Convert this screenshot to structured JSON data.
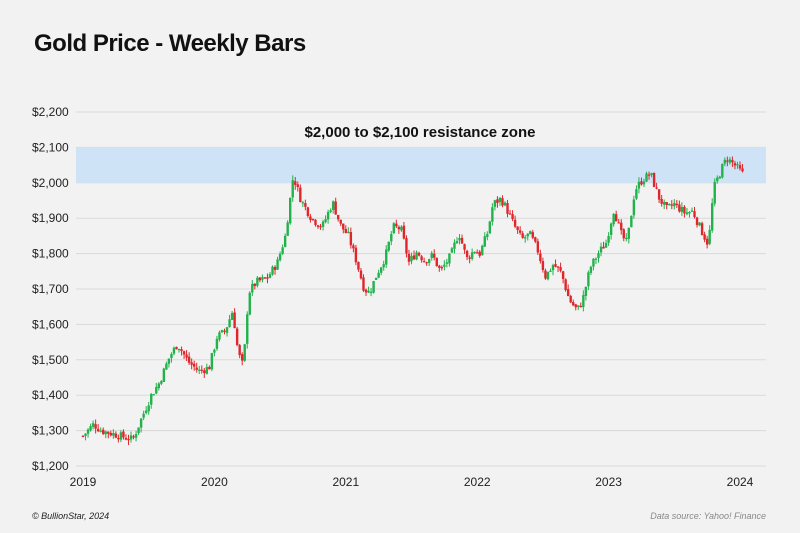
{
  "title": "Gold Price - Weekly Bars",
  "footer": {
    "copyright": "© BullionStar, 2024",
    "source": "Data source: Yahoo! Finance"
  },
  "colors": {
    "up": "#22b24c",
    "down": "#e0262b",
    "zone": "#cfe3f6",
    "grid": "#d9d9d9"
  },
  "chart_data": {
    "type": "candlestick",
    "title": "Gold Price - Weekly Bars",
    "ylim": [
      1200,
      2200
    ],
    "y_ticks": [
      {
        "value": 1200,
        "label": "$1,200"
      },
      {
        "value": 1300,
        "label": "$1,300"
      },
      {
        "value": 1400,
        "label": "$1,400"
      },
      {
        "value": 1500,
        "label": "$1,500"
      },
      {
        "value": 1600,
        "label": "$1,600"
      },
      {
        "value": 1700,
        "label": "$1,700"
      },
      {
        "value": 1800,
        "label": "$1,800"
      },
      {
        "value": 1900,
        "label": "$1,900"
      },
      {
        "value": 2000,
        "label": "$2,000"
      },
      {
        "value": 2100,
        "label": "$2,100"
      },
      {
        "value": 2200,
        "label": "$2,200"
      }
    ],
    "x_ticks": [
      {
        "value": 2019,
        "label": "2019"
      },
      {
        "value": 2020,
        "label": "2020"
      },
      {
        "value": 2021,
        "label": "2021"
      },
      {
        "value": 2022,
        "label": "2022"
      },
      {
        "value": 2023,
        "label": "2023"
      },
      {
        "value": 2024,
        "label": "2024"
      }
    ],
    "xlim": [
      2019,
      2024.1
    ],
    "grid": true,
    "annotation": {
      "text": "$2,000 to $2,100 resistance zone",
      "y_from": 2000,
      "y_to": 2100
    },
    "anchors": [
      [
        2019.0,
        1285
      ],
      [
        2019.08,
        1318
      ],
      [
        2019.14,
        1300
      ],
      [
        2019.22,
        1292
      ],
      [
        2019.3,
        1283
      ],
      [
        2019.38,
        1275
      ],
      [
        2019.44,
        1330
      ],
      [
        2019.52,
        1400
      ],
      [
        2019.58,
        1435
      ],
      [
        2019.66,
        1510
      ],
      [
        2019.72,
        1545
      ],
      [
        2019.8,
        1495
      ],
      [
        2019.88,
        1468
      ],
      [
        2019.96,
        1478
      ],
      [
        2020.02,
        1565
      ],
      [
        2020.08,
        1580
      ],
      [
        2020.14,
        1640
      ],
      [
        2020.18,
        1520
      ],
      [
        2020.22,
        1480
      ],
      [
        2020.26,
        1690
      ],
      [
        2020.32,
        1720
      ],
      [
        2020.4,
        1730
      ],
      [
        2020.48,
        1775
      ],
      [
        2020.54,
        1850
      ],
      [
        2020.6,
        2020
      ],
      [
        2020.66,
        1950
      ],
      [
        2020.74,
        1900
      ],
      [
        2020.82,
        1875
      ],
      [
        2020.9,
        1945
      ],
      [
        2020.96,
        1880
      ],
      [
        2021.02,
        1850
      ],
      [
        2021.08,
        1780
      ],
      [
        2021.14,
        1700
      ],
      [
        2021.18,
        1690
      ],
      [
        2021.24,
        1745
      ],
      [
        2021.3,
        1790
      ],
      [
        2021.36,
        1875
      ],
      [
        2021.42,
        1870
      ],
      [
        2021.48,
        1775
      ],
      [
        2021.54,
        1805
      ],
      [
        2021.6,
        1780
      ],
      [
        2021.66,
        1795
      ],
      [
        2021.72,
        1750
      ],
      [
        2021.8,
        1795
      ],
      [
        2021.86,
        1860
      ],
      [
        2021.92,
        1785
      ],
      [
        2021.98,
        1810
      ],
      [
        2022.02,
        1800
      ],
      [
        2022.08,
        1860
      ],
      [
        2022.12,
        1940
      ],
      [
        2022.18,
        1955
      ],
      [
        2022.22,
        1930
      ],
      [
        2022.28,
        1880
      ],
      [
        2022.34,
        1840
      ],
      [
        2022.4,
        1855
      ],
      [
        2022.46,
        1810
      ],
      [
        2022.52,
        1735
      ],
      [
        2022.58,
        1770
      ],
      [
        2022.64,
        1745
      ],
      [
        2022.7,
        1670
      ],
      [
        2022.76,
        1640
      ],
      [
        2022.8,
        1665
      ],
      [
        2022.86,
        1760
      ],
      [
        2022.92,
        1800
      ],
      [
        2022.98,
        1830
      ],
      [
        2023.04,
        1925
      ],
      [
        2023.1,
        1850
      ],
      [
        2023.14,
        1830
      ],
      [
        2023.2,
        1980
      ],
      [
        2023.26,
        2010
      ],
      [
        2023.32,
        2025
      ],
      [
        2023.38,
        1960
      ],
      [
        2023.44,
        1925
      ],
      [
        2023.5,
        1940
      ],
      [
        2023.58,
        1915
      ],
      [
        2023.64,
        1920
      ],
      [
        2023.7,
        1870
      ],
      [
        2023.76,
        1825
      ],
      [
        2023.8,
        1985
      ],
      [
        2023.86,
        2040
      ],
      [
        2023.9,
        2070
      ],
      [
        2023.96,
        2050
      ],
      [
        2024.02,
        2025
      ]
    ]
  }
}
